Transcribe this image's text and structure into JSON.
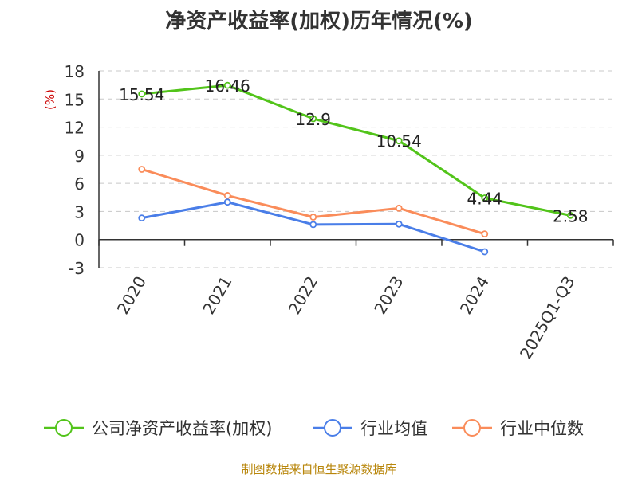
{
  "chart_data": {
    "type": "line",
    "title": "净资产收益率(加权)历年情况(%)",
    "ylabel": "(%)",
    "xlabel": "",
    "categories": [
      "2020",
      "2021",
      "2022",
      "2023",
      "2024",
      "2025Q1-Q3"
    ],
    "y_ticks": [
      "18",
      "15",
      "12",
      "9",
      "6",
      "3",
      "0",
      "-3"
    ],
    "ylim": [
      -3,
      18
    ],
    "grid": true,
    "legend_position": "bottom",
    "series": [
      {
        "name": "公司净资产收益率(加权)",
        "color": "#52c41a",
        "values": [
          15.54,
          16.46,
          12.9,
          10.54,
          4.44,
          2.58
        ],
        "labels": [
          "15.54",
          "16.46",
          "12.9",
          "10.54",
          "4.44",
          "2.58"
        ]
      },
      {
        "name": "行业均值",
        "color": "#4a7ee8",
        "values": [
          2.3,
          4.0,
          1.6,
          1.65,
          -1.3,
          null
        ]
      },
      {
        "name": "行业中位数",
        "color": "#fa8c5a",
        "values": [
          7.5,
          4.7,
          2.4,
          3.35,
          0.6,
          null
        ]
      }
    ]
  },
  "source": "制图数据来自恒生聚源数据库"
}
